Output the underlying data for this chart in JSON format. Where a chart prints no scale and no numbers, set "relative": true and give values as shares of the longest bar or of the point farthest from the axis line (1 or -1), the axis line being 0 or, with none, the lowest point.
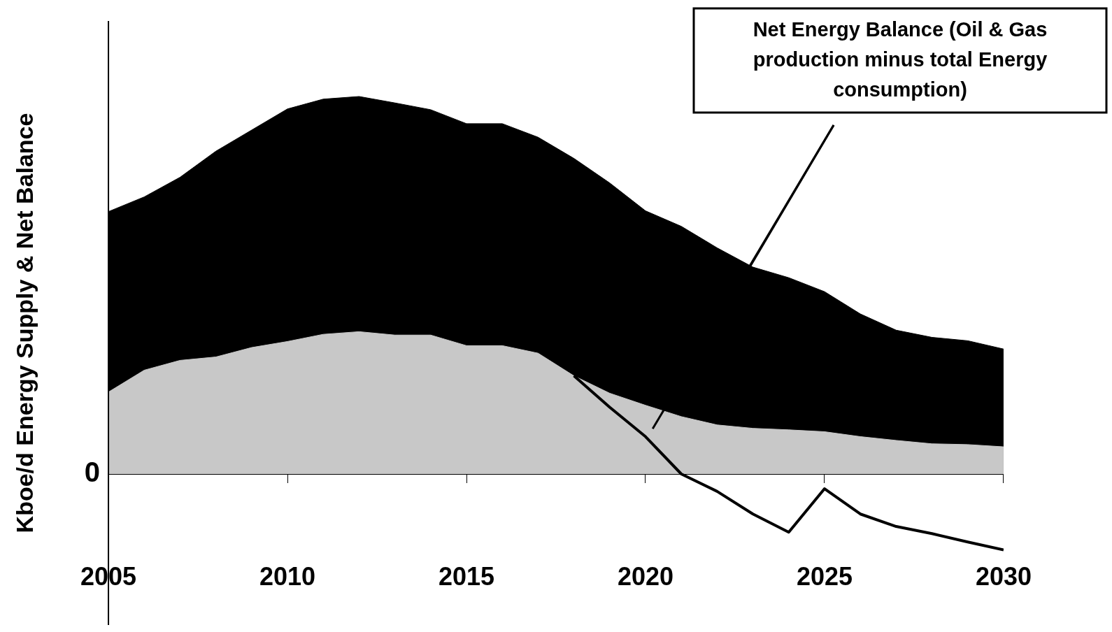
{
  "chart_data": {
    "type": "area",
    "relative": true,
    "ylabel": "Kboe/d Energy Supply & Net Balance",
    "xlim": [
      2005,
      2030
    ],
    "xticks": [
      2005,
      2010,
      2015,
      2020,
      2025,
      2030
    ],
    "grid": false,
    "legend": false,
    "series": [
      {
        "color": "#000000",
        "x": [
          2005,
          2006,
          2007,
          2008,
          2009,
          2010,
          2011,
          2012,
          2013,
          2014,
          2015,
          2016,
          2017,
          2018,
          2019,
          2020,
          2021,
          2022,
          2023,
          2024,
          2025,
          2026,
          2027,
          2028,
          2029,
          2030
        ],
        "values": [
          0.695,
          0.734,
          0.786,
          0.855,
          0.911,
          0.967,
          0.993,
          1,
          0.983,
          0.965,
          0.928,
          0.928,
          0.892,
          0.836,
          0.771,
          0.697,
          0.656,
          0.599,
          0.548,
          0.52,
          0.483,
          0.424,
          0.381,
          0.362,
          0.353,
          0.331
        ]
      },
      {
        "color": "#c8c8c8",
        "x": [
          2005,
          2006,
          2007,
          2008,
          2009,
          2010,
          2011,
          2012,
          2013,
          2014,
          2015,
          2016,
          2017,
          2018,
          2019,
          2020,
          2021,
          2022,
          2023,
          2024,
          2025,
          2026,
          2027,
          2028,
          2029,
          2030
        ],
        "values": [
          0.217,
          0.275,
          0.301,
          0.31,
          0.335,
          0.351,
          0.37,
          0.377,
          0.368,
          0.368,
          0.34,
          0.34,
          0.32,
          0.26,
          0.214,
          0.182,
          0.152,
          0.13,
          0.121,
          0.117,
          0.112,
          0.099,
          0.089,
          0.08,
          0.078,
          0.072
        ]
      },
      {
        "type": "line",
        "color": "#000000",
        "x": [
          2018,
          2019,
          2020,
          2021,
          2022,
          2023,
          2024,
          2025,
          2026,
          2027,
          2028,
          2029,
          2030
        ],
        "values": [
          0.26,
          0.177,
          0.099,
          0,
          -0.046,
          -0.106,
          -0.154,
          -0.039,
          -0.106,
          -0.139,
          -0.158,
          -0.18,
          -0.201
        ]
      }
    ],
    "annotations": [
      "0",
      "Net Energy Balance (Oil & Gas production minus total Energy consumption)"
    ]
  }
}
